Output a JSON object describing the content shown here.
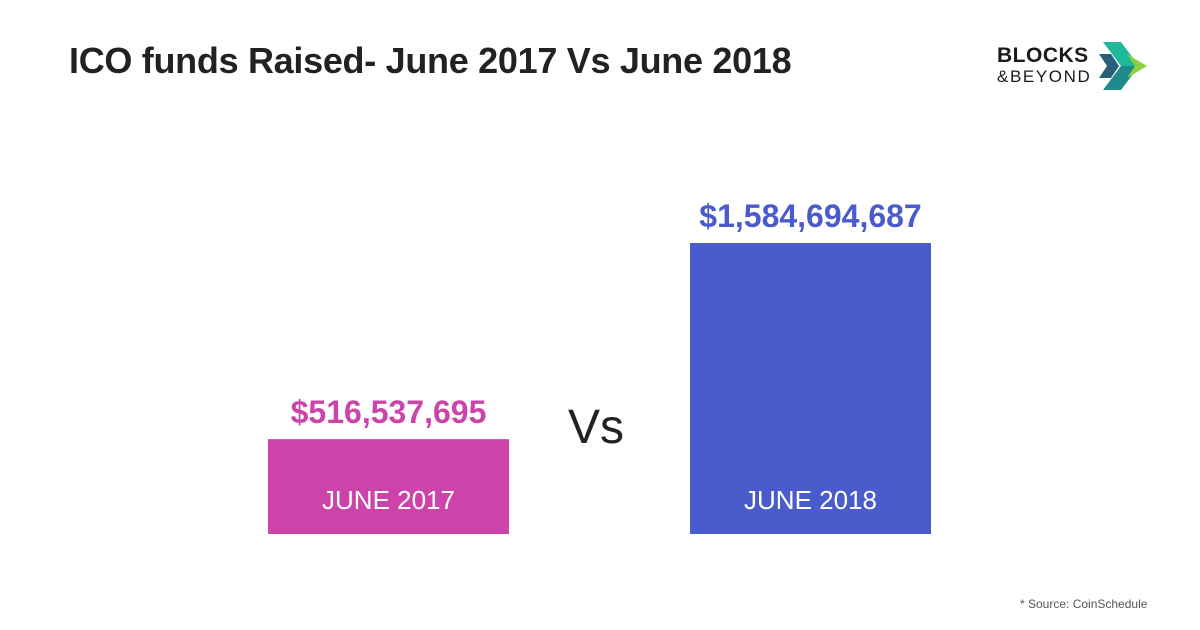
{
  "header": {
    "title": "ICO funds Raised- June 2017 Vs June 2018"
  },
  "logo": {
    "line1": "BLOCKS",
    "line2": "&BEYOND",
    "colors": [
      "#1fb89a",
      "#1e8a8c",
      "#8ccf3f",
      "#2a5f7a"
    ]
  },
  "separator": "Vs",
  "source": "* Source: CoinSchedule",
  "chart_data": {
    "type": "bar",
    "categories": [
      "JUNE 2017",
      "JUNE 2018"
    ],
    "values": [
      516537695,
      1584694687
    ],
    "value_labels": [
      "$516,537,695",
      "$1,584,694,687"
    ],
    "colors": [
      "#cc44aa",
      "#4a5bcc"
    ],
    "title": "ICO funds Raised- June 2017 Vs June 2018",
    "xlabel": "",
    "ylabel": "",
    "grid": false,
    "legend": "none"
  }
}
